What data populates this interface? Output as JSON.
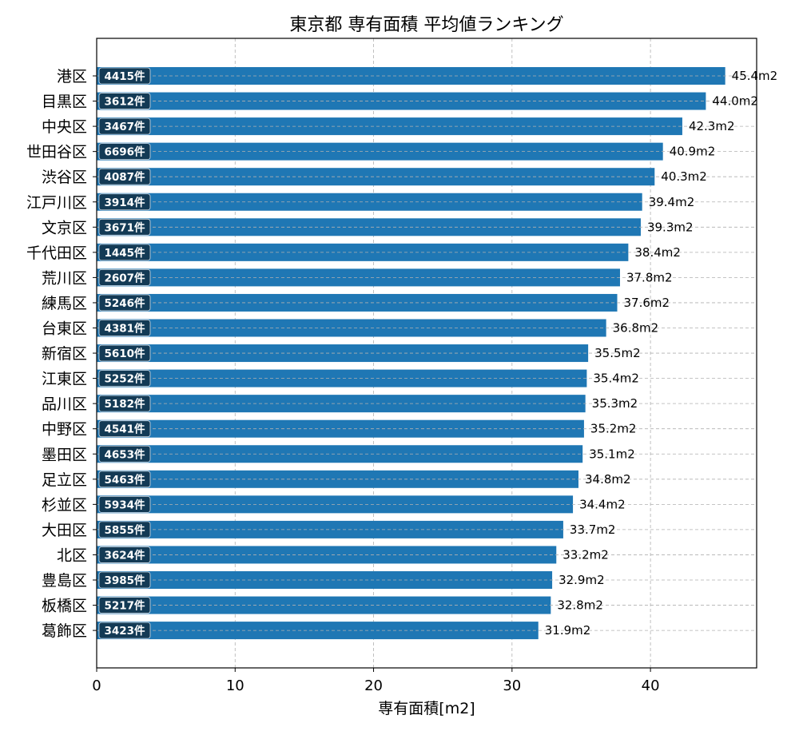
{
  "colors": {
    "bar": "#1f77b4",
    "count_badge": "#133a55",
    "grid": "#b0b0b0",
    "axis": "#000000"
  },
  "chart_data": {
    "type": "bar",
    "orientation": "horizontal",
    "title": "東京都 専有面積 平均値ランキング",
    "xlabel": "専有面積[m2]",
    "ylabel": "",
    "xlim": [
      0,
      47.67
    ],
    "xticks": [
      0,
      10,
      20,
      30,
      40
    ],
    "grid": true,
    "value_suffix": "m2",
    "count_suffix": "件",
    "categories": [
      "港区",
      "目黒区",
      "中央区",
      "世田谷区",
      "渋谷区",
      "江戸川区",
      "文京区",
      "千代田区",
      "荒川区",
      "練馬区",
      "台東区",
      "新宿区",
      "江東区",
      "品川区",
      "中野区",
      "墨田区",
      "足立区",
      "杉並区",
      "大田区",
      "北区",
      "豊島区",
      "板橋区",
      "葛飾区"
    ],
    "values": [
      45.4,
      44.0,
      42.3,
      40.9,
      40.3,
      39.4,
      39.3,
      38.4,
      37.8,
      37.6,
      36.8,
      35.5,
      35.4,
      35.3,
      35.2,
      35.1,
      34.8,
      34.4,
      33.7,
      33.2,
      32.9,
      32.8,
      31.9
    ],
    "counts": [
      4415,
      3612,
      3467,
      6696,
      4087,
      3914,
      3671,
      1445,
      2607,
      5246,
      4381,
      5610,
      5252,
      5182,
      4541,
      4653,
      5463,
      5934,
      5855,
      3624,
      3985,
      5217,
      3423
    ]
  }
}
